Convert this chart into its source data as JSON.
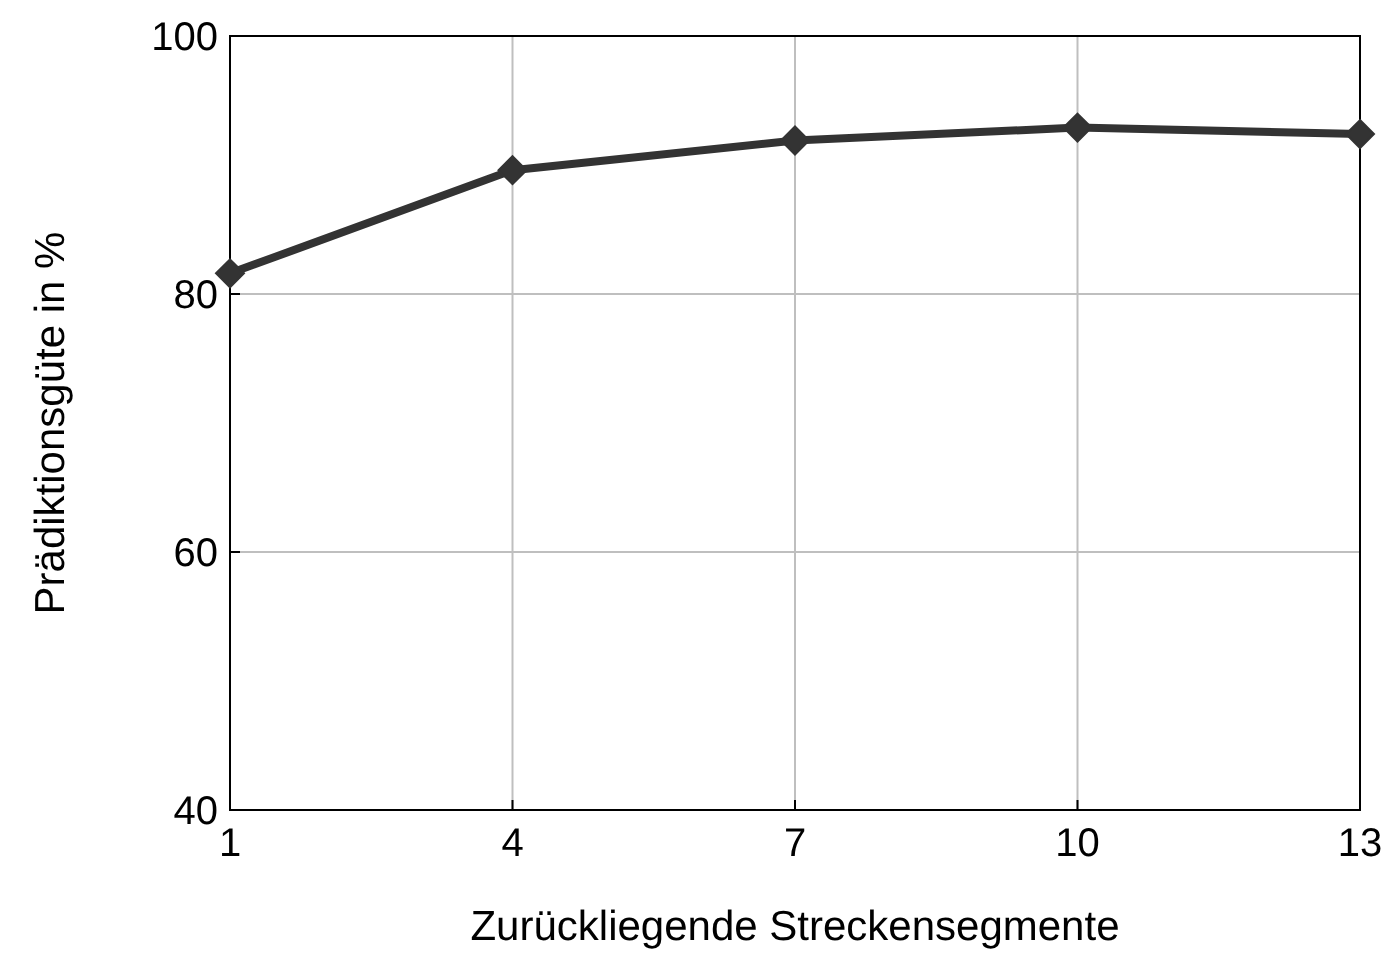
{
  "chart_data": {
    "type": "line",
    "xlabel": "Zurückliegende Streckensegmente",
    "ylabel": "Prädiktionsgüte in %",
    "x": [
      1,
      4,
      7,
      10,
      13
    ],
    "series": [
      {
        "color": "#333333",
        "values": [
          81.6,
          89.6,
          91.9,
          92.9,
          92.4
        ]
      }
    ],
    "xlim": [
      1,
      13
    ],
    "xticks": [
      1,
      4,
      7,
      10,
      13
    ],
    "ylim": [
      40,
      100
    ],
    "yticks": [
      40,
      60,
      80,
      100
    ],
    "grid": true,
    "marker": "diamond",
    "line_style": "solid"
  }
}
